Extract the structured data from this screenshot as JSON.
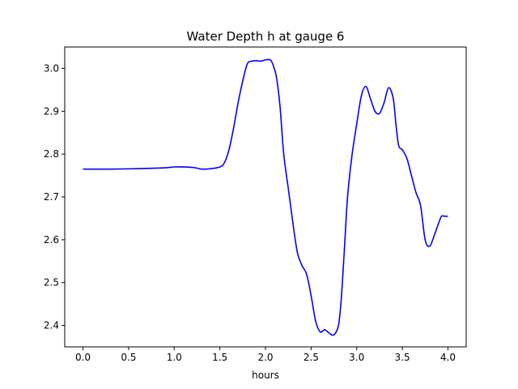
{
  "chart_data": {
    "type": "line",
    "title": "Water Depth h at gauge 6",
    "xlabel": "hours",
    "ylabel": "",
    "xlim": [
      -0.2,
      4.2
    ],
    "ylim": [
      2.35,
      3.05
    ],
    "xticks": [
      0.0,
      0.5,
      1.0,
      1.5,
      2.0,
      2.5,
      3.0,
      3.5,
      4.0
    ],
    "xtick_labels": [
      "0.0",
      "0.5",
      "1.0",
      "1.5",
      "2.0",
      "2.5",
      "3.0",
      "3.5",
      "4.0"
    ],
    "yticks": [
      2.4,
      2.5,
      2.6,
      2.7,
      2.8,
      2.9,
      3.0
    ],
    "ytick_labels": [
      "2.4",
      "2.5",
      "2.6",
      "2.7",
      "2.8",
      "2.9",
      "3.0"
    ],
    "grid": false,
    "series": [
      {
        "color": "#0000ff",
        "x": [
          0.0,
          0.3,
          0.6,
          0.9,
          1.0,
          1.2,
          1.3,
          1.4,
          1.5,
          1.55,
          1.6,
          1.65,
          1.7,
          1.75,
          1.8,
          1.85,
          1.9,
          1.95,
          2.0,
          2.05,
          2.08,
          2.12,
          2.16,
          2.2,
          2.25,
          2.3,
          2.35,
          2.4,
          2.45,
          2.5,
          2.55,
          2.6,
          2.65,
          2.7,
          2.75,
          2.8,
          2.83,
          2.86,
          2.9,
          2.95,
          3.0,
          3.05,
          3.1,
          3.15,
          3.2,
          3.25,
          3.3,
          3.35,
          3.4,
          3.43,
          3.46,
          3.5,
          3.55,
          3.6,
          3.65,
          3.7,
          3.75,
          3.8,
          3.85,
          3.9,
          3.93,
          3.96,
          4.0
        ],
        "y": [
          2.765,
          2.765,
          2.766,
          2.768,
          2.77,
          2.769,
          2.765,
          2.766,
          2.77,
          2.78,
          2.81,
          2.86,
          2.92,
          2.97,
          3.01,
          3.017,
          3.018,
          3.017,
          3.02,
          3.02,
          3.01,
          2.98,
          2.91,
          2.8,
          2.72,
          2.64,
          2.57,
          2.54,
          2.52,
          2.47,
          2.41,
          2.385,
          2.39,
          2.382,
          2.378,
          2.4,
          2.46,
          2.56,
          2.7,
          2.8,
          2.87,
          2.935,
          2.958,
          2.93,
          2.9,
          2.895,
          2.92,
          2.955,
          2.93,
          2.87,
          2.82,
          2.81,
          2.79,
          2.75,
          2.71,
          2.68,
          2.6,
          2.585,
          2.61,
          2.64,
          2.655,
          2.655,
          2.655
        ]
      }
    ]
  }
}
